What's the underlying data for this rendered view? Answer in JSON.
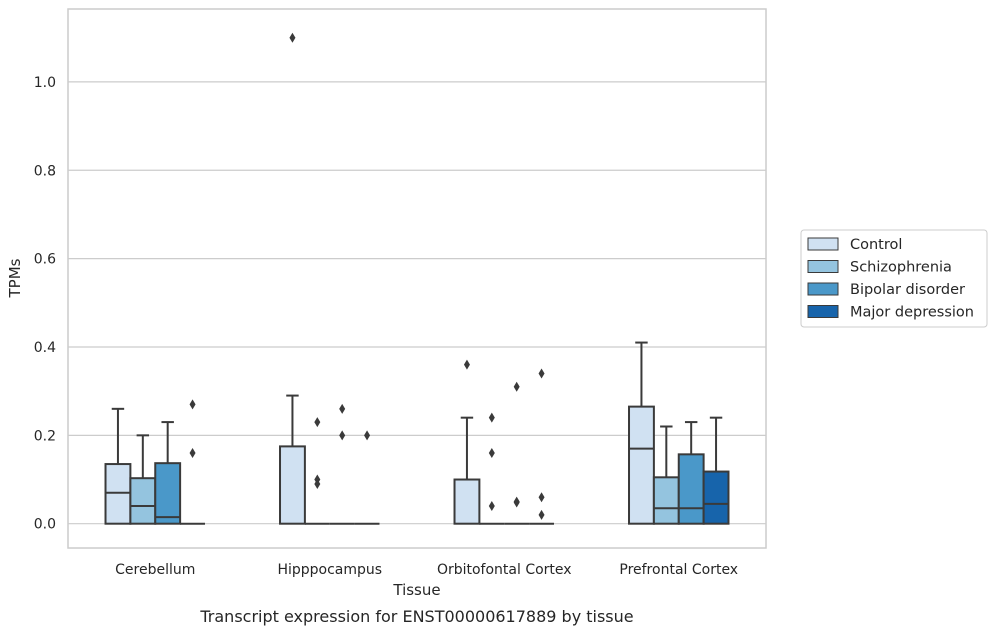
{
  "caption": "Transcript expression for ENST00000617889 by tissue",
  "chart_data": {
    "type": "boxplot",
    "xlabel": "Tissue",
    "ylabel": "TPMs",
    "ylim": [
      -0.055,
      1.165
    ],
    "yticks": [
      "0.0",
      "0.2",
      "0.4",
      "0.6",
      "0.8",
      "1.0"
    ],
    "grid": true,
    "legend_position": "right",
    "categories": [
      "Cerebellum",
      "Hipppocampus",
      "Orbitofontal Cortex",
      "Prefrontal Cortex"
    ],
    "series": [
      {
        "name": "Control",
        "color": "#d0e1f2",
        "boxes": [
          {
            "min": 0,
            "q1": 0,
            "median": 0.07,
            "q3": 0.135,
            "max": 0.26,
            "outliers": []
          },
          {
            "min": 0,
            "q1": 0,
            "median": 0,
            "q3": 0.175,
            "max": 0.29,
            "outliers": [
              1.1
            ]
          },
          {
            "min": 0,
            "q1": 0,
            "median": 0,
            "q3": 0.1,
            "max": 0.24,
            "outliers": [
              0.36
            ]
          },
          {
            "min": 0,
            "q1": 0,
            "median": 0.17,
            "q3": 0.265,
            "max": 0.41,
            "outliers": []
          }
        ]
      },
      {
        "name": "Schizophrenia",
        "color": "#94c4df",
        "boxes": [
          {
            "min": 0,
            "q1": 0,
            "median": 0.04,
            "q3": 0.103,
            "max": 0.2,
            "outliers": []
          },
          {
            "min": 0,
            "q1": 0,
            "median": 0,
            "q3": 0,
            "max": 0,
            "outliers": [
              0.1,
              0.09,
              0.23
            ]
          },
          {
            "min": 0,
            "q1": 0,
            "median": 0,
            "q3": 0,
            "max": 0,
            "outliers": [
              0.24,
              0.16,
              0.04
            ]
          },
          {
            "min": 0,
            "q1": 0,
            "median": 0.035,
            "q3": 0.105,
            "max": 0.22,
            "outliers": []
          }
        ]
      },
      {
        "name": "Bipolar disorder",
        "color": "#4a98c9",
        "boxes": [
          {
            "min": 0,
            "q1": 0,
            "median": 0.015,
            "q3": 0.137,
            "max": 0.23,
            "outliers": []
          },
          {
            "min": 0,
            "q1": 0,
            "median": 0,
            "q3": 0,
            "max": 0,
            "outliers": [
              0.26,
              0.2
            ]
          },
          {
            "min": 0,
            "q1": 0,
            "median": 0,
            "q3": 0,
            "max": 0,
            "outliers": [
              0.31,
              0.05,
              0.048
            ]
          },
          {
            "min": 0,
            "q1": 0,
            "median": 0.035,
            "q3": 0.157,
            "max": 0.23,
            "outliers": []
          }
        ]
      },
      {
        "name": "Major depression",
        "color": "#1764ab",
        "boxes": [
          {
            "min": 0,
            "q1": 0,
            "median": 0,
            "q3": 0,
            "max": 0,
            "outliers": [
              0.27,
              0.16
            ]
          },
          {
            "min": 0,
            "q1": 0,
            "median": 0,
            "q3": 0,
            "max": 0,
            "outliers": [
              0.2
            ]
          },
          {
            "min": 0,
            "q1": 0,
            "median": 0,
            "q3": 0,
            "max": 0,
            "outliers": [
              0.34,
              0.06,
              0.02
            ]
          },
          {
            "min": 0,
            "q1": 0,
            "median": 0.045,
            "q3": 0.118,
            "max": 0.24,
            "outliers": []
          }
        ]
      }
    ]
  }
}
